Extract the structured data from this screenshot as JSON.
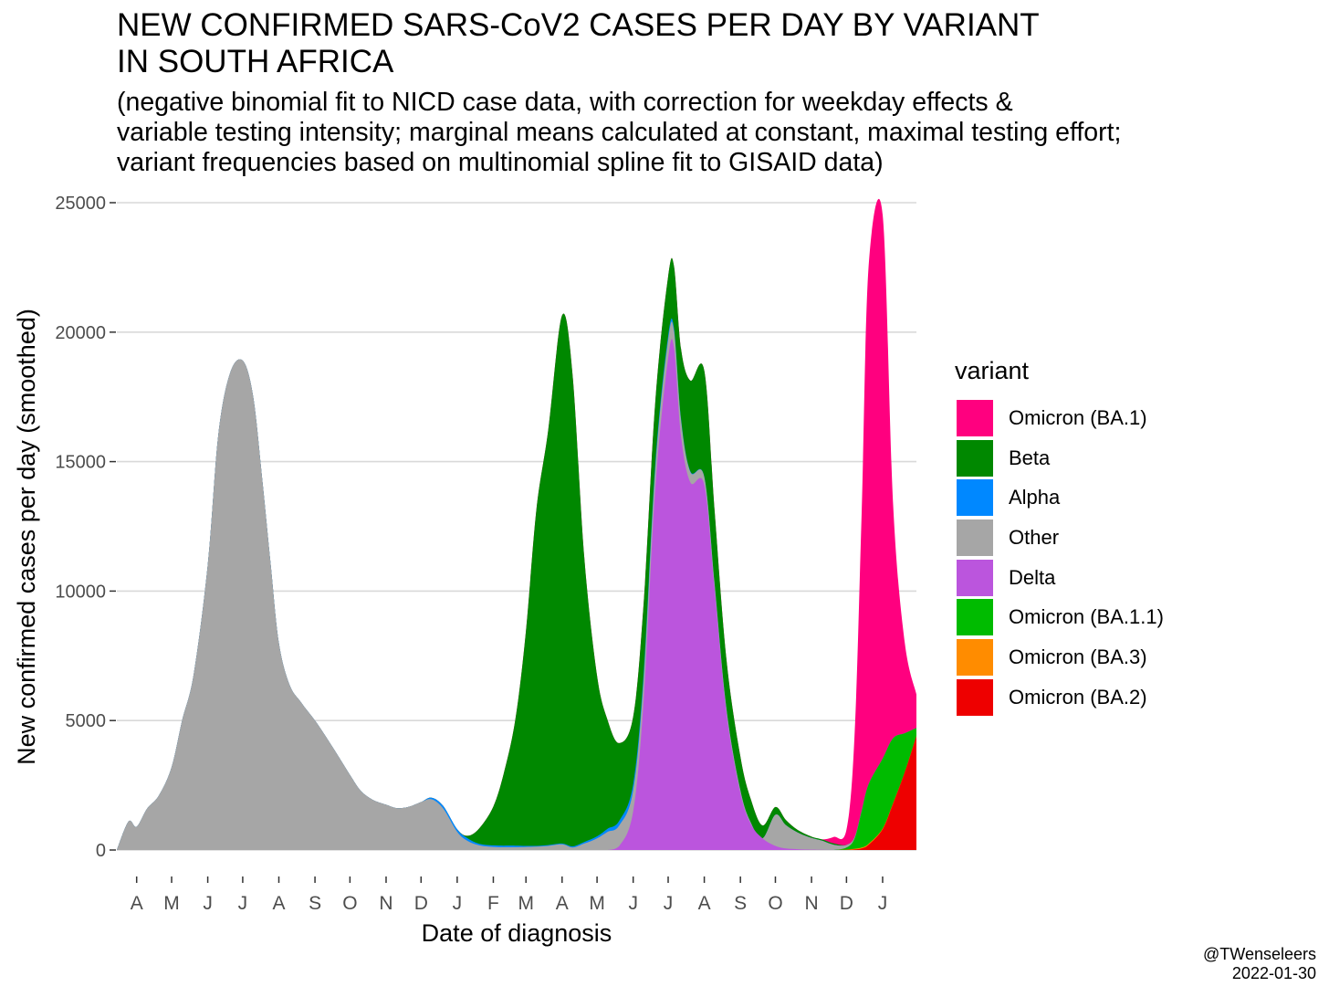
{
  "title": "NEW CONFIRMED SARS-CoV2 CASES PER DAY BY VARIANT\nIN SOUTH AFRICA",
  "subtitle": "(negative binomial fit to NICD case data, with correction for weekday effects &\nvariable testing intensity; marginal means calculated at constant, maximal testing effort;\nvariant frequencies based on multinomial spline fit to GISAID data)",
  "credit": {
    "handle": "@TWenseleers",
    "date": "2022-01-30"
  },
  "chart_data": {
    "type": "area",
    "stacked": true,
    "xlabel": "Date of diagnosis",
    "ylabel": "New confirmed cases per day (smoothed)",
    "ylim": [
      0,
      25000
    ],
    "yticks": [
      0,
      5000,
      10000,
      15000,
      20000,
      25000
    ],
    "xlim": [
      "2020-03-15",
      "2022-01-30"
    ],
    "xticks": [
      {
        "date": "2020-04-01",
        "label": "A"
      },
      {
        "date": "2020-05-01",
        "label": "M"
      },
      {
        "date": "2020-06-01",
        "label": "J"
      },
      {
        "date": "2020-07-01",
        "label": "J"
      },
      {
        "date": "2020-08-01",
        "label": "A"
      },
      {
        "date": "2020-09-01",
        "label": "S"
      },
      {
        "date": "2020-10-01",
        "label": "O"
      },
      {
        "date": "2020-11-01",
        "label": "N"
      },
      {
        "date": "2020-12-01",
        "label": "D"
      },
      {
        "date": "2021-01-01",
        "label": "J"
      },
      {
        "date": "2021-02-01",
        "label": "F"
      },
      {
        "date": "2021-03-01",
        "label": "M"
      },
      {
        "date": "2021-04-01",
        "label": "A"
      },
      {
        "date": "2021-05-01",
        "label": "M"
      },
      {
        "date": "2021-06-01",
        "label": "J"
      },
      {
        "date": "2021-07-01",
        "label": "J"
      },
      {
        "date": "2021-08-01",
        "label": "A"
      },
      {
        "date": "2021-09-01",
        "label": "S"
      },
      {
        "date": "2021-10-01",
        "label": "O"
      },
      {
        "date": "2021-11-01",
        "label": "N"
      },
      {
        "date": "2021-12-01",
        "label": "D"
      },
      {
        "date": "2022-01-01",
        "label": "J"
      }
    ],
    "grid": true,
    "legend_placement": "right",
    "legend_title": "variant",
    "x": [
      "2020-03-15",
      "2020-03-25",
      "2020-04-01",
      "2020-04-10",
      "2020-04-20",
      "2020-05-01",
      "2020-05-10",
      "2020-05-20",
      "2020-06-01",
      "2020-06-10",
      "2020-06-20",
      "2020-07-01",
      "2020-07-10",
      "2020-07-18",
      "2020-07-25",
      "2020-08-01",
      "2020-08-10",
      "2020-08-20",
      "2020-09-01",
      "2020-09-10",
      "2020-09-20",
      "2020-10-01",
      "2020-10-10",
      "2020-10-20",
      "2020-11-01",
      "2020-11-10",
      "2020-11-20",
      "2020-12-01",
      "2020-12-10",
      "2020-12-20",
      "2021-01-01",
      "2021-01-10",
      "2021-01-20",
      "2021-02-01",
      "2021-02-10",
      "2021-02-20",
      "2021-03-01",
      "2021-03-10",
      "2021-03-20",
      "2021-04-01",
      "2021-04-10",
      "2021-04-20",
      "2021-05-01",
      "2021-05-10",
      "2021-05-20",
      "2021-06-01",
      "2021-06-10",
      "2021-06-20",
      "2021-07-01",
      "2021-07-06",
      "2021-07-12",
      "2021-07-20",
      "2021-08-01",
      "2021-08-10",
      "2021-08-20",
      "2021-09-01",
      "2021-09-10",
      "2021-09-20",
      "2021-10-01",
      "2021-10-10",
      "2021-10-20",
      "2021-11-01",
      "2021-11-10",
      "2021-11-20",
      "2021-12-01",
      "2021-12-08",
      "2021-12-14",
      "2021-12-20",
      "2022-01-01",
      "2022-01-10",
      "2022-01-20",
      "2022-01-30"
    ],
    "series": [
      {
        "name": "Omicron (BA.2)",
        "color": "#ee0000",
        "values": [
          0,
          0,
          0,
          0,
          0,
          0,
          0,
          0,
          0,
          0,
          0,
          0,
          0,
          0,
          0,
          0,
          0,
          0,
          0,
          0,
          0,
          0,
          0,
          0,
          0,
          0,
          0,
          0,
          0,
          0,
          0,
          0,
          0,
          0,
          0,
          0,
          0,
          0,
          0,
          0,
          0,
          0,
          0,
          0,
          0,
          0,
          0,
          0,
          0,
          0,
          0,
          0,
          0,
          0,
          0,
          0,
          0,
          0,
          0,
          0,
          0,
          0,
          0,
          0,
          5,
          20,
          60,
          200,
          800,
          1800,
          3000,
          4400
        ]
      },
      {
        "name": "Omicron (BA.3)",
        "color": "#ff8c00",
        "values": [
          0,
          0,
          0,
          0,
          0,
          0,
          0,
          0,
          0,
          0,
          0,
          0,
          0,
          0,
          0,
          0,
          0,
          0,
          0,
          0,
          0,
          0,
          0,
          0,
          0,
          0,
          0,
          0,
          0,
          0,
          0,
          0,
          0,
          0,
          0,
          0,
          0,
          0,
          0,
          0,
          0,
          0,
          0,
          0,
          0,
          0,
          0,
          0,
          0,
          0,
          0,
          0,
          0,
          0,
          0,
          0,
          0,
          0,
          0,
          0,
          0,
          0,
          0,
          0,
          10,
          30,
          40,
          40,
          30,
          20,
          10,
          10
        ]
      },
      {
        "name": "Omicron (BA.1.1)",
        "color": "#00bb00",
        "values": [
          0,
          0,
          0,
          0,
          0,
          0,
          0,
          0,
          0,
          0,
          0,
          0,
          0,
          0,
          0,
          0,
          0,
          0,
          0,
          0,
          0,
          0,
          0,
          0,
          0,
          0,
          0,
          0,
          0,
          0,
          0,
          0,
          0,
          0,
          0,
          0,
          0,
          0,
          0,
          0,
          0,
          0,
          0,
          0,
          0,
          0,
          0,
          0,
          0,
          0,
          0,
          0,
          0,
          0,
          0,
          0,
          0,
          0,
          0,
          0,
          0,
          0,
          0,
          0,
          80,
          400,
          1400,
          2300,
          2700,
          2500,
          1500,
          300
        ]
      },
      {
        "name": "Delta",
        "color": "#bb55dd",
        "values": [
          0,
          0,
          0,
          0,
          0,
          0,
          0,
          0,
          0,
          0,
          0,
          0,
          0,
          0,
          0,
          0,
          0,
          0,
          0,
          0,
          0,
          0,
          0,
          0,
          0,
          0,
          0,
          0,
          0,
          0,
          0,
          0,
          0,
          0,
          0,
          0,
          0,
          0,
          0,
          0,
          0,
          0,
          0,
          0,
          150,
          1500,
          5800,
          14000,
          19000,
          19400,
          16000,
          14200,
          14100,
          10000,
          5300,
          2200,
          1000,
          450,
          160,
          60,
          30,
          15,
          10,
          5,
          0,
          0,
          0,
          0,
          0,
          0,
          0,
          0
        ]
      },
      {
        "name": "Other",
        "color": "#a6a6a6",
        "values": [
          0,
          1100,
          900,
          1600,
          2100,
          3200,
          5000,
          6800,
          11000,
          16000,
          18400,
          18900,
          17500,
          14200,
          11000,
          8000,
          6400,
          5700,
          5000,
          4400,
          3700,
          2900,
          2300,
          1950,
          1750,
          1620,
          1660,
          1850,
          1960,
          1600,
          700,
          350,
          180,
          120,
          110,
          110,
          120,
          130,
          160,
          220,
          100,
          250,
          450,
          700,
          800,
          800,
          800,
          750,
          700,
          650,
          600,
          400,
          300,
          200,
          150,
          100,
          50,
          0,
          1200,
          900,
          650,
          450,
          350,
          200,
          100,
          50,
          20,
          0,
          0,
          0,
          0,
          0
        ]
      },
      {
        "name": "Alpha",
        "color": "#0088ff",
        "values": [
          0,
          0,
          0,
          0,
          0,
          0,
          0,
          0,
          0,
          0,
          0,
          0,
          0,
          0,
          0,
          0,
          0,
          0,
          0,
          0,
          0,
          0,
          0,
          0,
          0,
          0,
          0,
          0,
          60,
          100,
          100,
          100,
          60,
          60,
          60,
          60,
          40,
          30,
          30,
          30,
          40,
          60,
          80,
          120,
          180,
          250,
          250,
          200,
          150,
          100,
          60,
          30,
          10,
          0,
          0,
          0,
          0,
          0,
          0,
          0,
          0,
          0,
          0,
          0,
          0,
          0,
          0,
          0,
          0,
          0,
          0,
          0
        ]
      },
      {
        "name": "Beta",
        "color": "#008800",
        "values": [
          0,
          0,
          0,
          0,
          0,
          0,
          0,
          0,
          0,
          0,
          0,
          0,
          0,
          0,
          0,
          0,
          0,
          0,
          0,
          0,
          0,
          0,
          0,
          0,
          0,
          0,
          0,
          0,
          0,
          0,
          0,
          100,
          600,
          1500,
          2800,
          4900,
          8300,
          13000,
          16000,
          20400,
          18200,
          11000,
          6200,
          4200,
          3000,
          2600,
          2700,
          2400,
          2300,
          2400,
          2700,
          3500,
          4100,
          2800,
          1900,
          1300,
          900,
          500,
          300,
          200,
          100,
          50,
          50,
          50,
          0,
          0,
          0,
          0,
          0,
          0,
          0,
          0
        ]
      },
      {
        "name": "Omicron (BA.1)",
        "color": "#ff007f",
        "values": [
          0,
          0,
          0,
          0,
          0,
          0,
          0,
          0,
          0,
          0,
          0,
          0,
          0,
          0,
          0,
          0,
          0,
          0,
          0,
          0,
          0,
          0,
          0,
          0,
          0,
          0,
          0,
          0,
          0,
          0,
          0,
          0,
          0,
          0,
          0,
          0,
          0,
          0,
          0,
          0,
          0,
          0,
          0,
          0,
          0,
          0,
          0,
          0,
          0,
          0,
          0,
          0,
          0,
          0,
          0,
          0,
          0,
          0,
          0,
          0,
          0,
          0,
          0,
          250,
          600,
          4000,
          11500,
          20000,
          21000,
          9000,
          3500,
          1300
        ]
      }
    ]
  }
}
